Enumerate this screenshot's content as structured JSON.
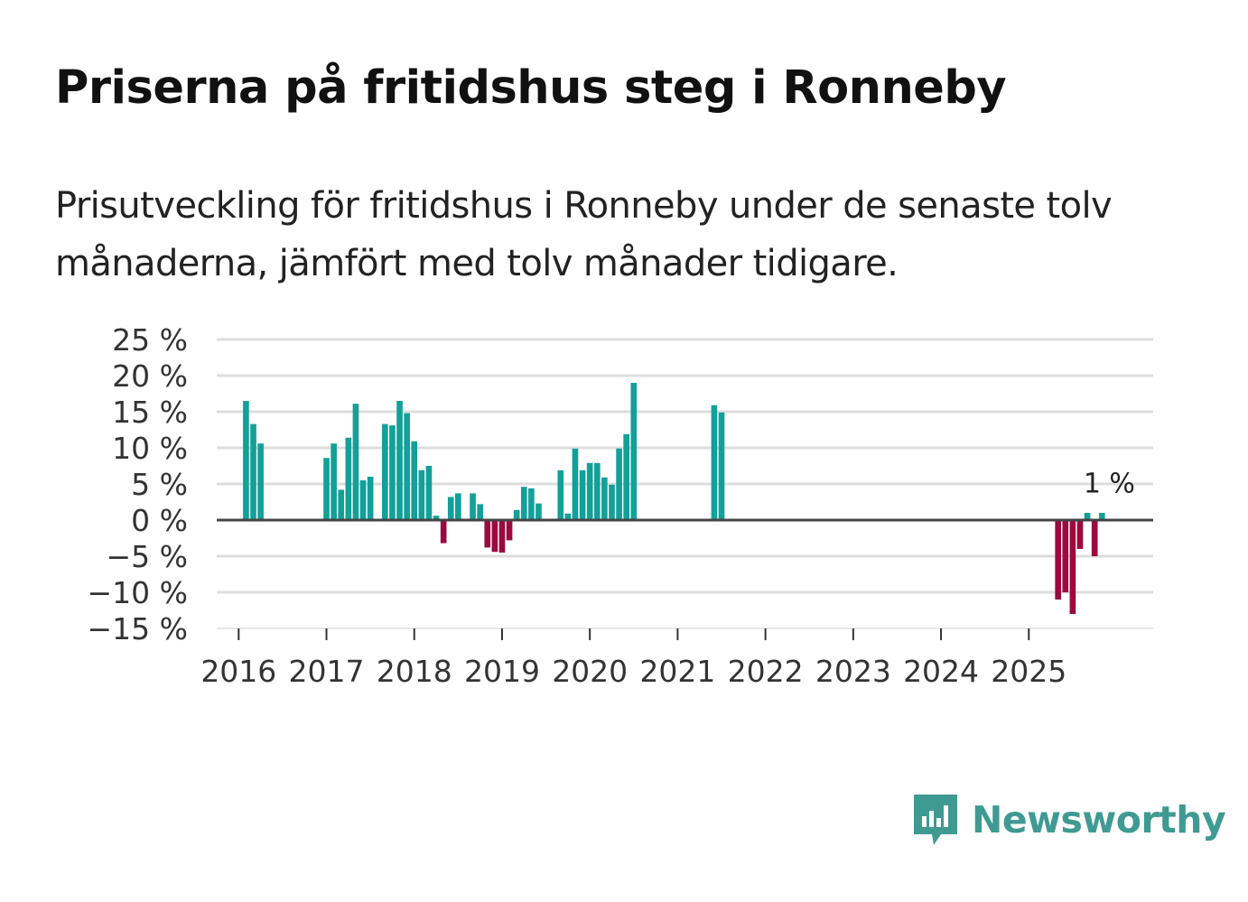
{
  "title": "Priserna på fritidshus steg i Ronneby",
  "subtitle": "Prisutveckling för fritidshus i Ronneby under de senaste tolv månaderna, jämfört med tolv månader tidigare.",
  "brand": {
    "name": "Newsworthy",
    "icon": "newsworthy-logo-icon",
    "color": "#3f9a92"
  },
  "colors": {
    "positive": "#12a099",
    "negative": "#9b0a3e",
    "grid": "#dddddd",
    "zero_line": "#444444"
  },
  "chart_data": {
    "type": "bar",
    "title": "Priserna på fritidshus steg i Ronneby",
    "xlabel": "",
    "ylabel": "",
    "ylim": [
      -15,
      25
    ],
    "yticks": [
      25,
      20,
      15,
      10,
      5,
      0,
      -5,
      -10,
      -15
    ],
    "ytick_labels": [
      "25 %",
      "20 %",
      "15 %",
      "10 %",
      "5 %",
      "0 %",
      "−5 %",
      "−10 %",
      "−15 %"
    ],
    "xlim": [
      "2015-10",
      "2026-06"
    ],
    "xtick_labels": [
      "2016",
      "2017",
      "2018",
      "2019",
      "2020",
      "2021",
      "2022",
      "2023",
      "2024",
      "2025"
    ],
    "grid": true,
    "unit": "%",
    "annotation": {
      "label": "1 %",
      "target": "2025-12"
    },
    "series": [
      {
        "name": "Prisutveckling fritidshus Ronneby",
        "points": [
          [
            "2016-02",
            16.5
          ],
          [
            "2016-03",
            13.3
          ],
          [
            "2016-04",
            10.6
          ],
          [
            "2017-01",
            8.6
          ],
          [
            "2017-02",
            10.6
          ],
          [
            "2017-03",
            4.2
          ],
          [
            "2017-04",
            11.4
          ],
          [
            "2017-05",
            16.1
          ],
          [
            "2017-06",
            5.5
          ],
          [
            "2017-07",
            6.0
          ],
          [
            "2017-09",
            13.3
          ],
          [
            "2017-10",
            13.1
          ],
          [
            "2017-11",
            16.5
          ],
          [
            "2017-12",
            14.8
          ],
          [
            "2018-01",
            10.9
          ],
          [
            "2018-02",
            6.9
          ],
          [
            "2018-03",
            7.5
          ],
          [
            "2018-04",
            0.6
          ],
          [
            "2018-05",
            -3.2
          ],
          [
            "2018-06",
            3.2
          ],
          [
            "2018-07",
            3.7
          ],
          [
            "2018-09",
            3.7
          ],
          [
            "2018-10",
            2.2
          ],
          [
            "2018-11",
            -3.8
          ],
          [
            "2018-12",
            -4.4
          ],
          [
            "2019-01",
            -4.5
          ],
          [
            "2019-02",
            -2.8
          ],
          [
            "2019-03",
            1.4
          ],
          [
            "2019-04",
            4.6
          ],
          [
            "2019-05",
            4.4
          ],
          [
            "2019-06",
            2.3
          ],
          [
            "2019-09",
            6.9
          ],
          [
            "2019-10",
            0.9
          ],
          [
            "2019-11",
            9.9
          ],
          [
            "2019-12",
            6.9
          ],
          [
            "2020-01",
            7.9
          ],
          [
            "2020-02",
            7.9
          ],
          [
            "2020-03",
            5.9
          ],
          [
            "2020-04",
            4.9
          ],
          [
            "2020-05",
            9.9
          ],
          [
            "2020-06",
            11.9
          ],
          [
            "2020-07",
            19.0
          ],
          [
            "2021-06",
            15.9
          ],
          [
            "2021-07",
            14.9
          ],
          [
            "2025-05",
            -11.0
          ],
          [
            "2025-06",
            -10.0
          ],
          [
            "2025-07",
            -13.0
          ],
          [
            "2025-08",
            -4.0
          ],
          [
            "2025-09",
            1.0
          ],
          [
            "2025-10",
            -5.0
          ],
          [
            "2025-11",
            1.0
          ]
        ]
      }
    ]
  }
}
